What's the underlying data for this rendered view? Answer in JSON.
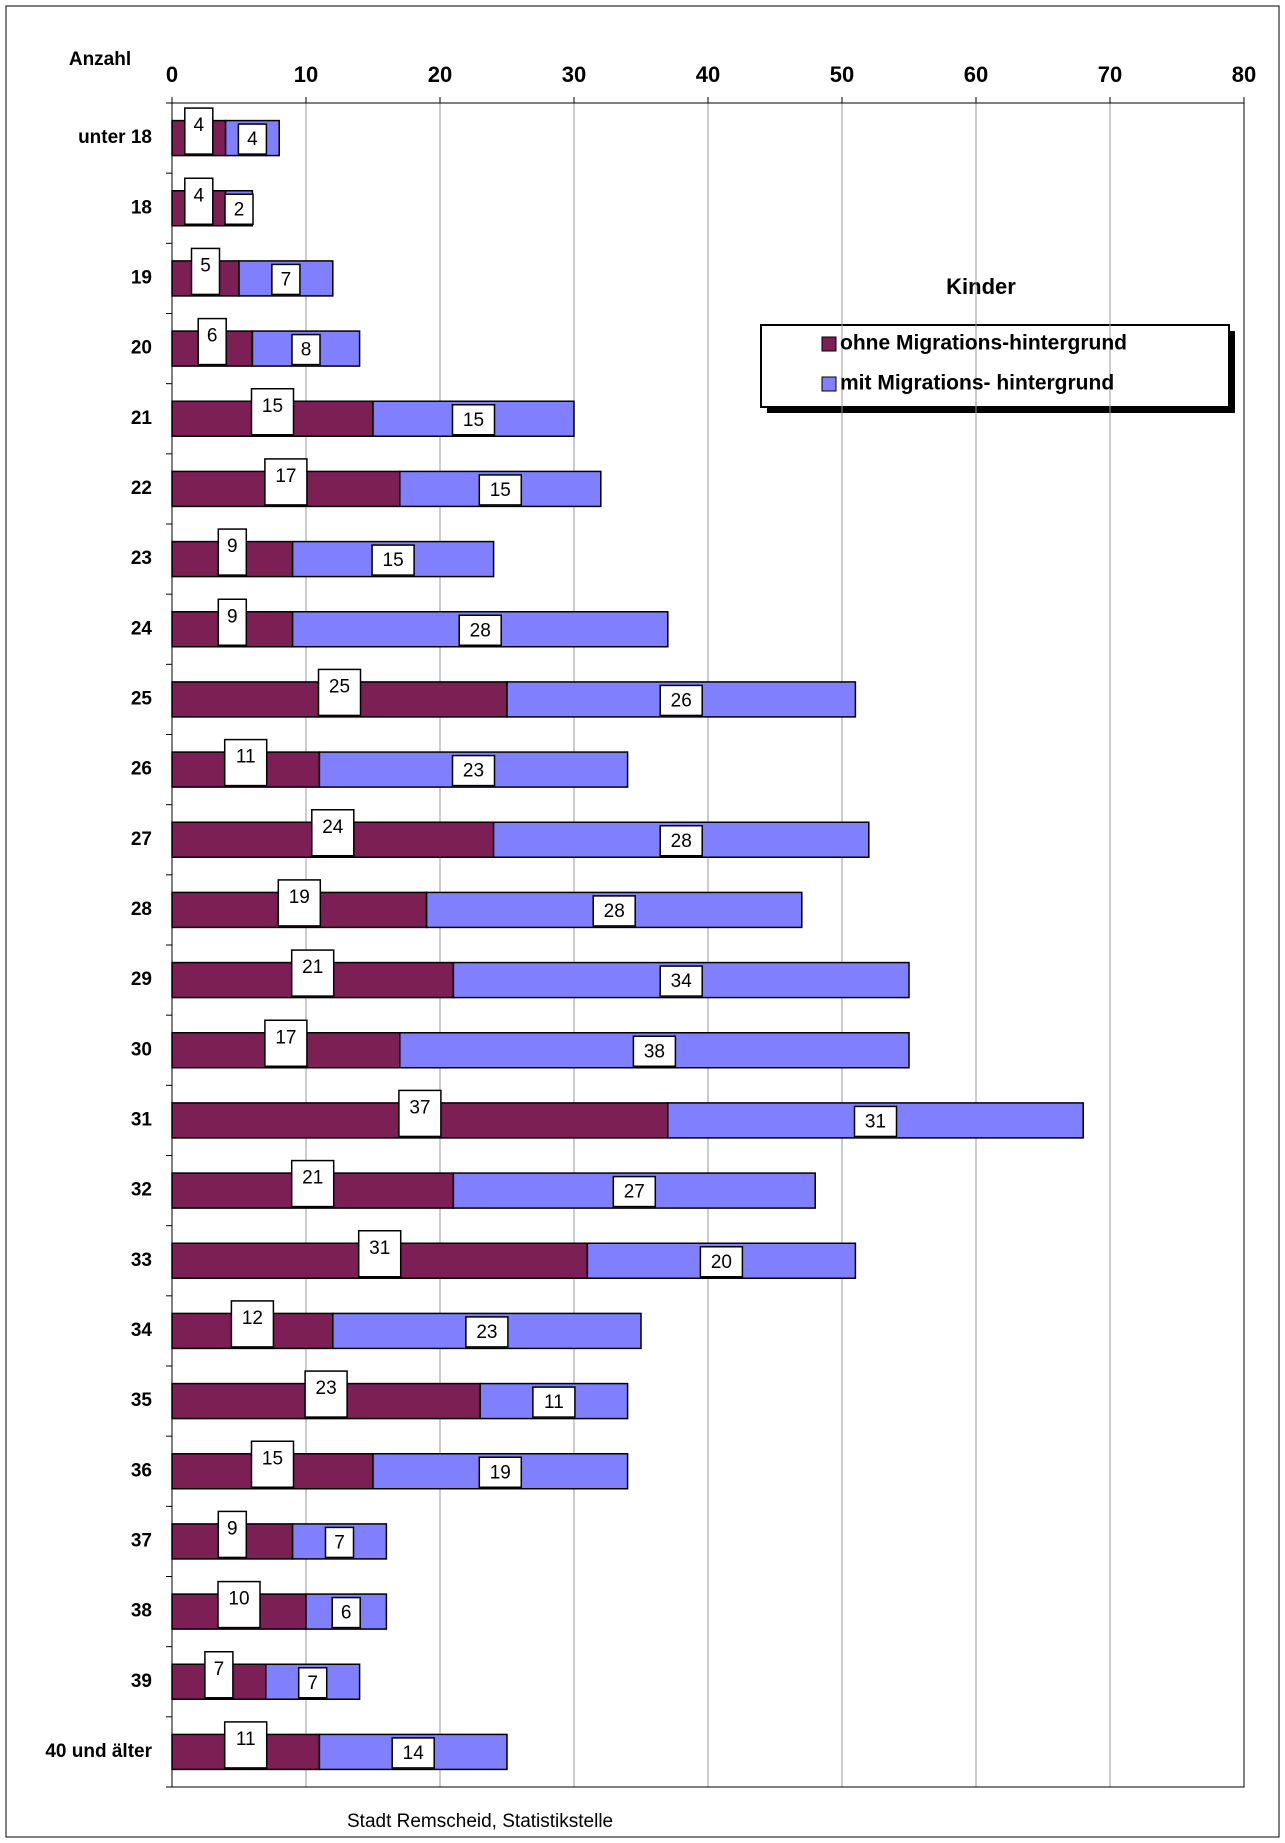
{
  "chart_data": {
    "type": "stacked-bar-horizontal",
    "axis_label": "Anzahl",
    "legend_title": "Kinder",
    "source": "Stadt Remscheid,  Statistikstelle",
    "categories": [
      "unter 18",
      "18",
      "19",
      "20",
      "21",
      "22",
      "23",
      "24",
      "25",
      "26",
      "27",
      "28",
      "29",
      "30",
      "31",
      "32",
      "33",
      "34",
      "35",
      "36",
      "37",
      "38",
      "39",
      "40 und älter"
    ],
    "series": [
      {
        "name": "ohne Migrations-hintergrund",
        "color": "#7b1f55",
        "values": [
          4,
          4,
          5,
          6,
          15,
          17,
          9,
          9,
          25,
          11,
          24,
          19,
          21,
          17,
          37,
          21,
          31,
          12,
          23,
          15,
          9,
          10,
          7,
          11
        ]
      },
      {
        "name": "mit Migrations- hintergrund",
        "color": "#8080ff",
        "values": [
          4,
          2,
          7,
          8,
          15,
          15,
          15,
          28,
          26,
          23,
          28,
          28,
          34,
          38,
          31,
          27,
          20,
          23,
          11,
          19,
          7,
          6,
          7,
          14
        ]
      }
    ],
    "xlim": [
      0,
      80
    ],
    "xticks": [
      0,
      10,
      20,
      30,
      40,
      50,
      60,
      70,
      80
    ],
    "grid": true
  }
}
